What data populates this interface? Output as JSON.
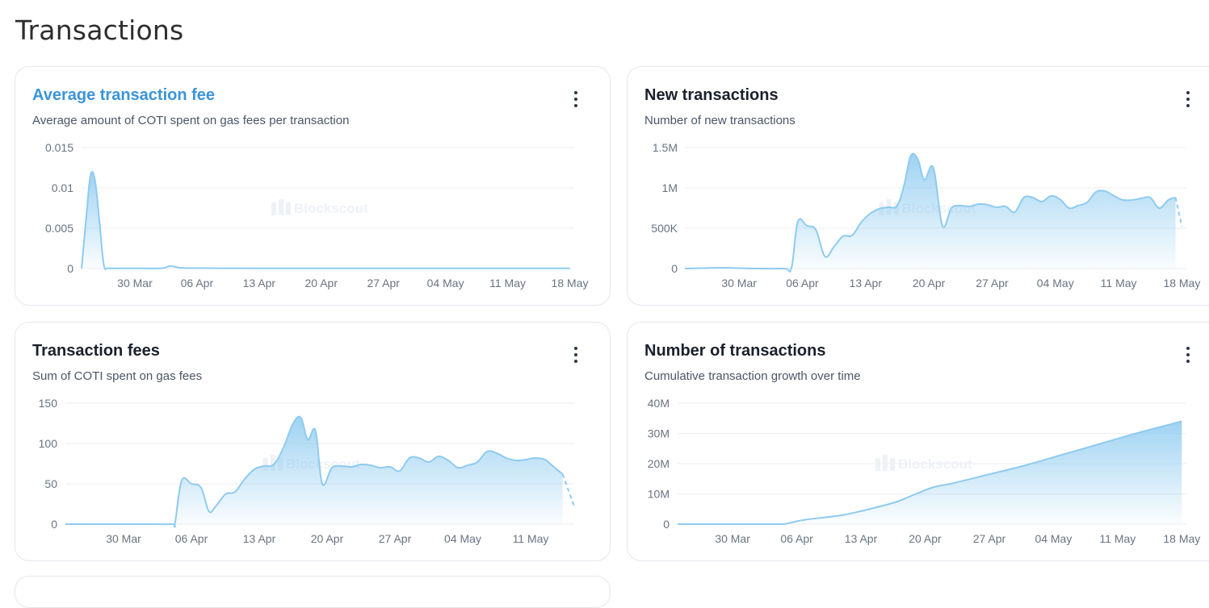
{
  "page": {
    "title": "Transactions"
  },
  "watermark": "Blockscout",
  "colors": {
    "line": "#8ecbf0",
    "area_top": "#8ecbf0",
    "grid": "#eceef1",
    "title_link": "#3b94d9"
  },
  "charts": [
    {
      "id": "avg-fee",
      "title": "Average transaction fee",
      "subtitle": "Average amount of COTI spent on gas fees per transaction",
      "title_is_link": true,
      "menu_icon": "more-vertical-icon"
    },
    {
      "id": "new-tx",
      "title": "New transactions",
      "subtitle": "Number of new transactions",
      "title_is_link": false,
      "menu_icon": "more-vertical-icon"
    },
    {
      "id": "tx-fees",
      "title": "Transaction fees",
      "subtitle": "Sum of COTI spent on gas fees",
      "title_is_link": false,
      "menu_icon": "more-vertical-icon"
    },
    {
      "id": "num-tx",
      "title": "Number of transactions",
      "subtitle": "Cumulative transaction growth over time",
      "title_is_link": false,
      "menu_icon": "more-vertical-icon"
    }
  ],
  "chart_data": [
    {
      "type": "area",
      "title": "Average transaction fee",
      "ylim": [
        0,
        0.015
      ],
      "y_ticks": [
        "0",
        "0.005",
        "0.01",
        "0.015"
      ],
      "y_tick_values": [
        0,
        0.005,
        0.01,
        0.015
      ],
      "x_ticks": [
        "30 Mar",
        "06 Apr",
        "13 Apr",
        "20 Apr",
        "27 Apr",
        "04 May",
        "11 May",
        "18 May"
      ],
      "x_tick_days": [
        6,
        13,
        20,
        27,
        34,
        41,
        48,
        55
      ],
      "xlim_days": [
        0,
        55.5
      ],
      "grid": true,
      "x_days": [
        0,
        0.5,
        1,
        1.5,
        2,
        2.5,
        3,
        4,
        6,
        9,
        10,
        11,
        12,
        13,
        15,
        20,
        30,
        40,
        50,
        55
      ],
      "values": [
        0,
        0.006,
        0.0115,
        0.011,
        0.006,
        0.0005,
        5e-05,
        2e-05,
        3e-05,
        4e-05,
        0.0003,
        0.0001,
        5e-05,
        5e-05,
        4e-05,
        3e-05,
        3e-05,
        3e-05,
        3e-05,
        3e-05
      ],
      "forecast_from_day": null
    },
    {
      "type": "area",
      "title": "New transactions",
      "ylim": [
        0,
        1500000
      ],
      "y_ticks": [
        "0",
        "500K",
        "1M",
        "1.5M"
      ],
      "y_tick_values": [
        0,
        500000,
        1000000,
        1500000
      ],
      "x_ticks": [
        "30 Mar",
        "06 Apr",
        "13 Apr",
        "20 Apr",
        "27 Apr",
        "04 May",
        "11 May",
        "18 May"
      ],
      "x_tick_days": [
        6,
        13,
        20,
        27,
        34,
        41,
        48,
        55
      ],
      "xlim_days": [
        0,
        55.5
      ],
      "grid": true,
      "x_days": [
        0,
        2,
        4,
        6,
        8,
        11,
        11.8,
        12.5,
        13.5,
        14.5,
        15.5,
        16.5,
        17.5,
        18.5,
        19.5,
        20.5,
        21.5,
        22.5,
        23.5,
        24.3,
        25,
        25.8,
        26.5,
        27.5,
        28.5,
        29.5,
        30.5,
        31.5,
        32.5,
        33.5,
        34.5,
        35.5,
        36.5,
        37.5,
        38.5,
        39.5,
        40.5,
        41.5,
        42.5,
        43.5,
        44.5,
        45.5,
        46.5,
        47.5,
        48.5,
        49.5,
        50.5,
        51.5,
        52.5,
        53.5,
        54.3,
        55
      ],
      "values": [
        0,
        5000,
        10000,
        5000,
        0,
        0,
        10000,
        580000,
        530000,
        480000,
        150000,
        270000,
        400000,
        410000,
        570000,
        680000,
        740000,
        760000,
        780000,
        1050000,
        1400000,
        1350000,
        1100000,
        1250000,
        530000,
        750000,
        780000,
        770000,
        800000,
        790000,
        760000,
        770000,
        700000,
        880000,
        880000,
        830000,
        900000,
        860000,
        750000,
        780000,
        820000,
        950000,
        960000,
        900000,
        850000,
        850000,
        870000,
        880000,
        750000,
        850000,
        880000,
        520000
      ],
      "forecast_from_day": 54.3
    },
    {
      "type": "area",
      "title": "Transaction fees",
      "ylim": [
        0,
        150
      ],
      "y_ticks": [
        "0",
        "50",
        "100",
        "150"
      ],
      "y_tick_values": [
        0,
        50,
        100,
        150
      ],
      "x_ticks": [
        "30 Mar",
        "06 Apr",
        "13 Apr",
        "20 Apr",
        "27 Apr",
        "04 May",
        "11 May"
      ],
      "x_tick_days": [
        6,
        13,
        20,
        27,
        34,
        41,
        48
      ],
      "xlim_days": [
        0,
        52.5
      ],
      "grid": true,
      "x_days": [
        0,
        2,
        4,
        6,
        8,
        11,
        11.3,
        12,
        13,
        14,
        14.8,
        15.5,
        16.5,
        17.5,
        18.5,
        19.5,
        20.5,
        21.5,
        22.5,
        23.5,
        24.3,
        25,
        25.8,
        26.5,
        27.5,
        28.5,
        29.5,
        30.5,
        31.5,
        32.5,
        33.5,
        34.5,
        35.5,
        36.5,
        37.5,
        38.5,
        39.5,
        40.5,
        41.5,
        42.5,
        43.5,
        44.5,
        45.5,
        46.5,
        47.5,
        48.5,
        49.5,
        50,
        50.5,
        51.3,
        52.5
      ],
      "values": [
        0,
        0,
        0,
        0,
        0,
        0,
        1,
        54,
        50,
        45,
        16,
        22,
        37,
        40,
        56,
        68,
        72,
        74,
        95,
        125,
        132,
        105,
        116,
        50,
        70,
        72,
        71,
        74,
        73,
        70,
        71,
        66,
        82,
        82,
        77,
        84,
        79,
        70,
        73,
        77,
        90,
        88,
        82,
        79,
        80,
        82,
        80,
        75,
        70,
        62,
        22
      ],
      "forecast_from_day": 51.3
    },
    {
      "type": "area",
      "title": "Number of transactions",
      "ylim": [
        0,
        40000000
      ],
      "y_ticks": [
        "0",
        "10M",
        "20M",
        "30M",
        "40M"
      ],
      "y_tick_values": [
        0,
        10000000,
        20000000,
        30000000,
        40000000
      ],
      "x_ticks": [
        "30 Mar",
        "06 Apr",
        "13 Apr",
        "20 Apr",
        "27 Apr",
        "04 May",
        "11 May",
        "18 May"
      ],
      "x_tick_days": [
        6,
        13,
        20,
        27,
        34,
        41,
        48,
        55
      ],
      "xlim_days": [
        0,
        55.5
      ],
      "grid": true,
      "x_days": [
        0,
        4,
        8,
        11,
        11.8,
        12.5,
        14,
        16,
        18,
        20,
        22,
        24,
        26,
        28,
        30,
        34,
        38,
        42,
        46,
        50,
        54,
        55
      ],
      "values": [
        0,
        0,
        0,
        0,
        100000,
        600000,
        1500000,
        2200000,
        3000000,
        4300000,
        5800000,
        7500000,
        10000000,
        12300000,
        13500000,
        16500000,
        19500000,
        23000000,
        26500000,
        30000000,
        33200000,
        34000000
      ],
      "forecast_from_day": null
    }
  ]
}
